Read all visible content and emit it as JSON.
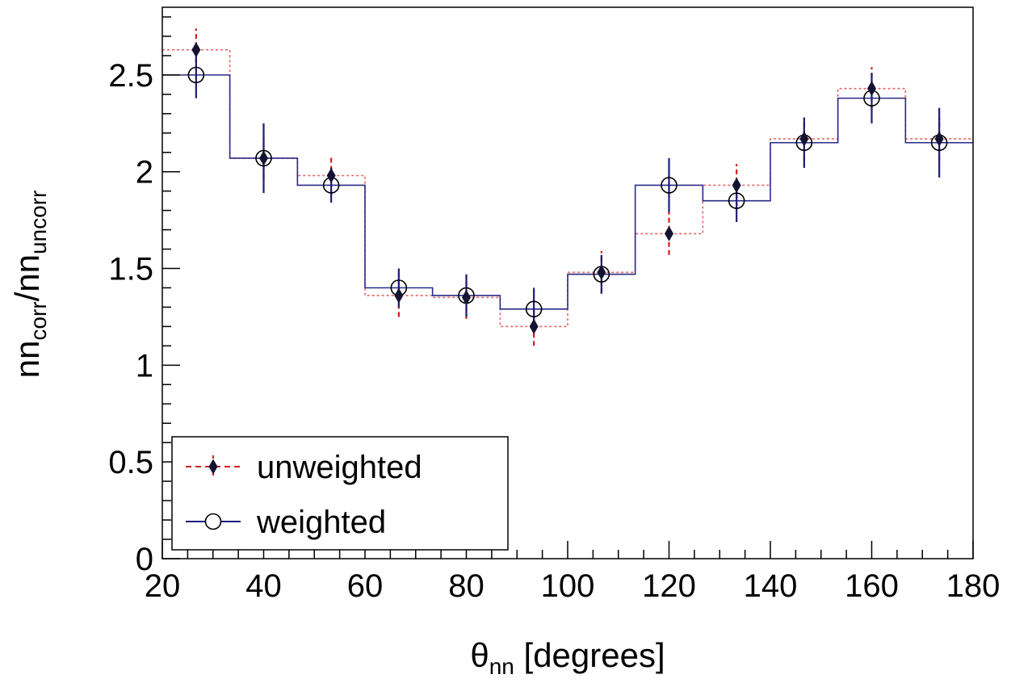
{
  "chart_data": {
    "type": "scatter",
    "xlabel": {
      "main": "θ",
      "sub": "nn",
      "rest": " [degrees]"
    },
    "ylabel": {
      "a": "nn",
      "a_sub": "corr",
      "slash": "/",
      "b": "nn",
      "b_sub": "uncorr"
    },
    "xlim": [
      20,
      180
    ],
    "ylim": [
      0,
      2.85
    ],
    "x_ticks": [
      20,
      40,
      60,
      80,
      100,
      120,
      140,
      160,
      180
    ],
    "x_tick_labels": [
      "20",
      "40",
      "60",
      "80",
      "100",
      "120",
      "140",
      "160",
      "180"
    ],
    "y_ticks": [
      0,
      0.5,
      1,
      1.5,
      2,
      2.5
    ],
    "y_tick_labels": [
      "0",
      "0.5",
      "1",
      "1.5",
      "2",
      "2.5"
    ],
    "bin_edges": [
      20,
      33.33,
      46.67,
      60,
      73.33,
      86.67,
      100,
      113.33,
      126.67,
      140,
      153.33,
      166.67,
      180
    ],
    "x": [
      26.67,
      40,
      53.33,
      66.67,
      80,
      93.33,
      106.67,
      120,
      133.33,
      146.67,
      160,
      173.33
    ],
    "series": [
      {
        "name": "unweighted",
        "color": "#d41c1c",
        "marker_color": "#141432",
        "values": [
          2.63,
          2.07,
          1.98,
          1.36,
          1.35,
          1.2,
          1.48,
          1.68,
          1.93,
          2.17,
          2.43,
          2.17
        ],
        "errors": [
          0.11,
          0.11,
          0.1,
          0.11,
          0.11,
          0.1,
          0.11,
          0.11,
          0.11,
          0.11,
          0.11,
          0.11
        ]
      },
      {
        "name": "weighted",
        "color": "#1c1c7a",
        "values": [
          2.5,
          2.07,
          1.93,
          1.4,
          1.36,
          1.29,
          1.47,
          1.93,
          1.85,
          2.15,
          2.38,
          2.15
        ],
        "errors": [
          0.12,
          0.18,
          0.09,
          0.1,
          0.11,
          0.11,
          0.1,
          0.14,
          0.11,
          0.13,
          0.13,
          0.18
        ]
      }
    ],
    "legend": {
      "position": "bottom-left",
      "entries": [
        "unweighted",
        "weighted"
      ]
    },
    "grid": false
  }
}
